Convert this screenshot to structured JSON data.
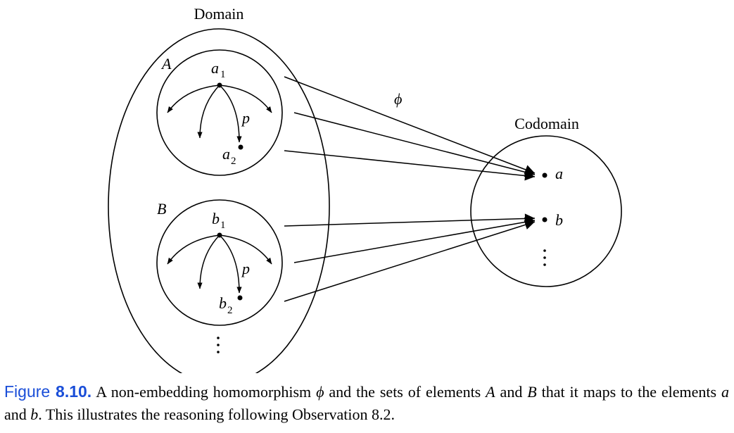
{
  "labels": {
    "domain": "Domain",
    "codomain": "Codomain",
    "phi": "ϕ",
    "set_a": "A",
    "set_b": "B",
    "a1_base": "a",
    "a1_sub": "1",
    "a2_base": "a",
    "a2_sub": "2",
    "b1_base": "b",
    "b1_sub": "1",
    "b2_base": "b",
    "b2_sub": "2",
    "p_top": "p",
    "p_bottom": "p",
    "elem_a": "a",
    "elem_b": "b",
    "vdots_domain": "⋮",
    "vdots_codomain": "⋮"
  },
  "caption": {
    "label": "Figure",
    "number": "8.10.",
    "part1": "A non-embedding homomorphism ",
    "phi": "ϕ",
    "part2": " and the sets of elements ",
    "A": "A",
    "part3": " and ",
    "B": "B",
    "part4": " that it maps to the elements ",
    "a": "a",
    "part5": " and ",
    "b": "b",
    "part6": ". This illustrates the reasoning following Observation 8.2."
  },
  "colors": {
    "caption_label": "#1a4ed8",
    "ink": "#000000"
  }
}
